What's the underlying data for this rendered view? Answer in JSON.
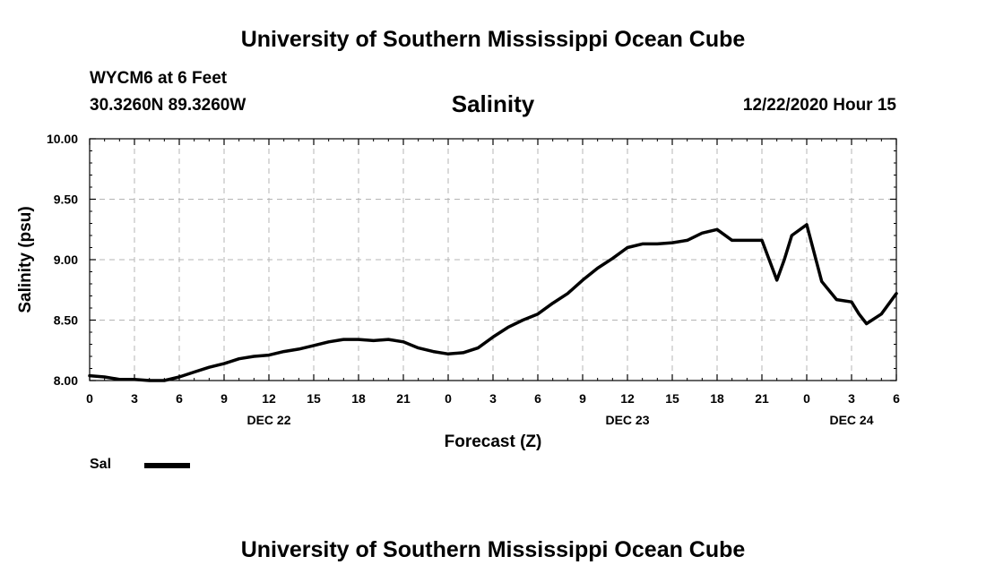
{
  "banner": {
    "top": "University of Southern Mississippi Ocean Cube",
    "bottom": "University of Southern Mississippi Ocean Cube"
  },
  "header": {
    "station": "WYCM6 at 6 Feet",
    "coords": "30.3260N 89.3260W",
    "run": "12/22/2020 Hour 15"
  },
  "colors": {
    "line": "#000000",
    "grid": "#b4b4b4",
    "background": "#ffffff"
  },
  "chart_data": {
    "type": "line",
    "title": "Salinity",
    "xlabel": "Forecast (Z)",
    "ylabel": "Salinity (psu)",
    "ylim": [
      8.0,
      10.0
    ],
    "xlim": [
      0,
      54
    ],
    "grid": true,
    "y_ticks": [
      8.0,
      8.5,
      9.0,
      9.5,
      10.0
    ],
    "y_tick_labels": [
      "8.00",
      "8.50",
      "9.00",
      "9.50",
      "10.00"
    ],
    "x_ticks": [
      0,
      3,
      6,
      9,
      12,
      15,
      18,
      21,
      24,
      27,
      30,
      33,
      36,
      39,
      42,
      45,
      48,
      51,
      54
    ],
    "x_tick_labels": [
      "0",
      "3",
      "6",
      "9",
      "12",
      "15",
      "18",
      "21",
      "0",
      "3",
      "6",
      "9",
      "12",
      "15",
      "18",
      "21",
      "0",
      "3",
      "6"
    ],
    "day_labels": [
      {
        "label": "DEC 22",
        "x": 12
      },
      {
        "label": "DEC 23",
        "x": 36
      },
      {
        "label": "DEC 24",
        "x": 51
      }
    ],
    "legend": {
      "label": "Sal",
      "position": "bottom-left"
    },
    "series": [
      {
        "name": "Sal",
        "x": [
          0,
          1,
          2,
          3,
          4,
          5,
          6,
          7,
          8,
          9,
          10,
          11,
          12,
          13,
          14,
          15,
          16,
          17,
          18,
          19,
          20,
          21,
          22,
          23,
          24,
          25,
          26,
          27,
          28,
          29,
          30,
          31,
          32,
          33,
          34,
          35,
          36,
          37,
          38,
          39,
          40,
          41,
          42,
          43,
          44,
          45,
          46,
          46.5,
          47,
          48,
          49,
          50,
          51,
          51.5,
          52,
          53,
          54
        ],
        "values": [
          8.04,
          8.03,
          8.01,
          8.01,
          8.0,
          8.0,
          8.03,
          8.07,
          8.11,
          8.14,
          8.18,
          8.2,
          8.21,
          8.24,
          8.26,
          8.29,
          8.32,
          8.34,
          8.34,
          8.33,
          8.34,
          8.32,
          8.27,
          8.24,
          8.22,
          8.23,
          8.27,
          8.36,
          8.44,
          8.5,
          8.55,
          8.64,
          8.72,
          8.83,
          8.93,
          9.01,
          9.1,
          9.13,
          9.13,
          9.14,
          9.16,
          9.22,
          9.25,
          9.16,
          9.16,
          9.16,
          8.83,
          9.0,
          9.2,
          9.29,
          8.82,
          8.67,
          8.65,
          8.55,
          8.47,
          8.55,
          8.72
        ]
      }
    ]
  }
}
